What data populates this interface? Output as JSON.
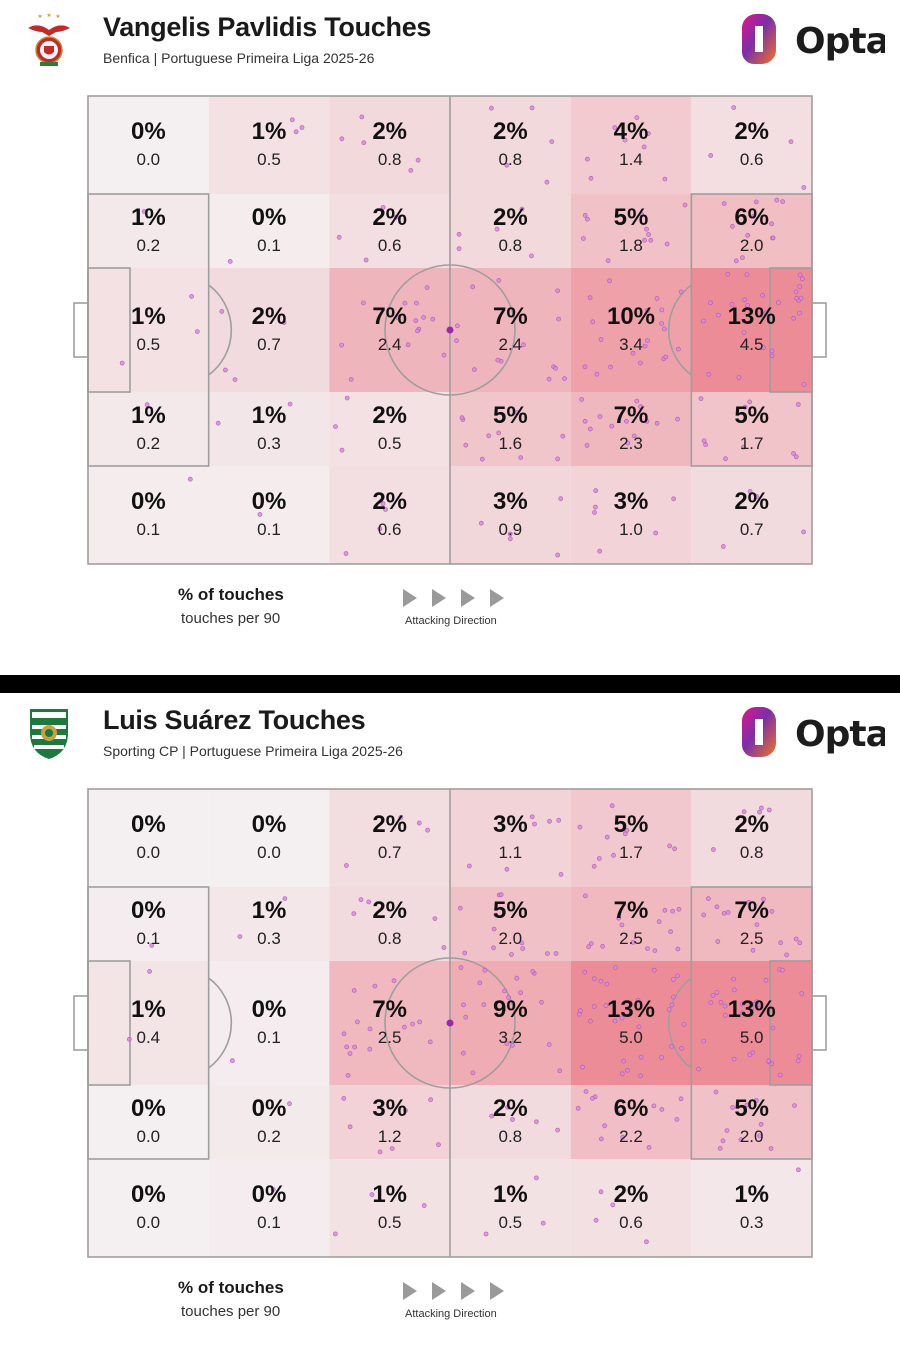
{
  "colors": {
    "heat_max": "#ec8c96",
    "heat_min": "#f4f0f1",
    "line": "#9e9e9e",
    "dot_fill": "#d88ed8",
    "dot_stroke": "#b25bbf",
    "opta_orange": "#f47321",
    "opta_purple": "#7b2fa8",
    "opta_pink": "#e4148b"
  },
  "brand": {
    "name": "Opta"
  },
  "legend": {
    "pct_label": "% of touches",
    "per90_label": "touches per 90",
    "direction_label": "Attacking Direction"
  },
  "panels": [
    {
      "title": "Vangelis Pavlidis Touches",
      "subtitle": "Benfica | Portuguese Primeira Liga 2025-26",
      "crest_icon": "benfica-crest-icon",
      "chart_data": {
        "type": "heatmap",
        "title": "Vangelis Pavlidis Touches",
        "subtitle": "Benfica | Portuguese Primeira Liga 2025-26",
        "x_zones": [
          "zone-1",
          "zone-2",
          "zone-3",
          "zone-4",
          "zone-5",
          "zone-6"
        ],
        "y_zones": [
          "top-wing",
          "top-half-space",
          "centre",
          "bottom-half-space",
          "bottom-wing"
        ],
        "attacking_direction": "left-to-right",
        "pct_of_touches": [
          [
            "0%",
            "1%",
            "2%",
            "2%",
            "4%",
            "2%"
          ],
          [
            "1%",
            "0%",
            "2%",
            "2%",
            "5%",
            "6%"
          ],
          [
            "1%",
            "2%",
            "7%",
            "7%",
            "10%",
            "13%"
          ],
          [
            "1%",
            "1%",
            "2%",
            "5%",
            "7%",
            "5%"
          ],
          [
            "0%",
            "0%",
            "2%",
            "3%",
            "3%",
            "2%"
          ]
        ],
        "touches_per_90": [
          [
            "0.0",
            "0.5",
            "0.8",
            "0.8",
            "1.4",
            "0.6"
          ],
          [
            "0.2",
            "0.1",
            "0.6",
            "0.8",
            "1.8",
            "2.0"
          ],
          [
            "0.5",
            "0.7",
            "2.4",
            "2.4",
            "3.4",
            "4.5"
          ],
          [
            "0.2",
            "0.3",
            "0.5",
            "1.6",
            "2.3",
            "1.7"
          ],
          [
            "0.1",
            "0.1",
            "0.6",
            "0.9",
            "1.0",
            "0.7"
          ]
        ]
      }
    },
    {
      "title": "Luis Suárez Touches",
      "subtitle": "Sporting CP | Portuguese Primeira Liga 2025-26",
      "crest_icon": "sporting-crest-icon",
      "chart_data": {
        "type": "heatmap",
        "title": "Luis Suárez Touches",
        "subtitle": "Sporting CP | Portuguese Primeira Liga 2025-26",
        "x_zones": [
          "zone-1",
          "zone-2",
          "zone-3",
          "zone-4",
          "zone-5",
          "zone-6"
        ],
        "y_zones": [
          "top-wing",
          "top-half-space",
          "centre",
          "bottom-half-space",
          "bottom-wing"
        ],
        "attacking_direction": "left-to-right",
        "pct_of_touches": [
          [
            "0%",
            "0%",
            "2%",
            "3%",
            "5%",
            "2%"
          ],
          [
            "0%",
            "1%",
            "2%",
            "5%",
            "7%",
            "7%"
          ],
          [
            "1%",
            "0%",
            "7%",
            "9%",
            "13%",
            "13%"
          ],
          [
            "0%",
            "0%",
            "3%",
            "2%",
            "6%",
            "5%"
          ],
          [
            "0%",
            "0%",
            "1%",
            "1%",
            "2%",
            "1%"
          ]
        ],
        "touches_per_90": [
          [
            "0.0",
            "0.0",
            "0.7",
            "1.1",
            "1.7",
            "0.8"
          ],
          [
            "0.1",
            "0.3",
            "0.8",
            "2.0",
            "2.5",
            "2.5"
          ],
          [
            "0.4",
            "0.1",
            "2.5",
            "3.2",
            "5.0",
            "5.0"
          ],
          [
            "0.0",
            "0.2",
            "1.2",
            "0.8",
            "2.2",
            "2.0"
          ],
          [
            "0.0",
            "0.1",
            "0.5",
            "0.5",
            "0.6",
            "0.3"
          ]
        ]
      }
    }
  ]
}
